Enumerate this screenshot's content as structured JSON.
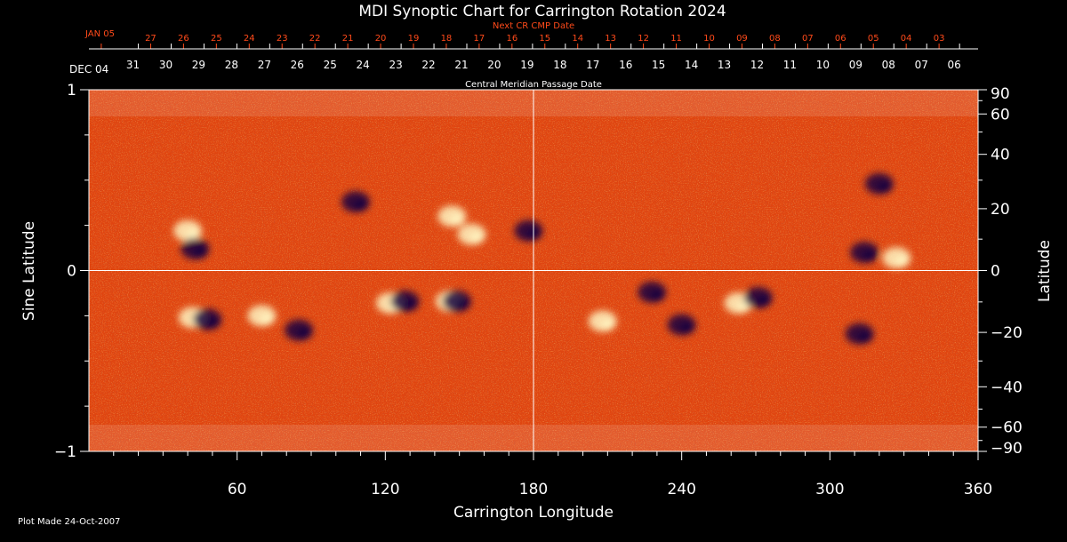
{
  "chart_data": {
    "type": "heatmap",
    "title": "MDI Synoptic Chart for Carrington Rotation 2024",
    "xlabel": "Carrington Longitude",
    "ylabel_left": "Sine Latitude",
    "ylabel_right": "Latitude",
    "xlim": [
      0,
      360
    ],
    "ylim_sine": [
      -1,
      1
    ],
    "x_ticks": [
      60,
      120,
      180,
      240,
      300,
      360
    ],
    "y_ticks_left": [
      {
        "value": 1,
        "label": "1"
      },
      {
        "value": 0,
        "label": "0"
      },
      {
        "value": -1,
        "label": "−1"
      }
    ],
    "y_ticks_right": [
      {
        "value": 90,
        "label": "90"
      },
      {
        "value": 60,
        "label": "60"
      },
      {
        "value": 40,
        "label": "40"
      },
      {
        "value": 20,
        "label": "20"
      },
      {
        "value": 0,
        "label": "0"
      },
      {
        "value": -20,
        "label": "−20"
      },
      {
        "value": -40,
        "label": "−40"
      },
      {
        "value": -60,
        "label": "−60"
      },
      {
        "value": -90,
        "label": "−90"
      }
    ],
    "cmp_axis_label": "Central Meridian Passage Date",
    "cmp_dates": [
      {
        "label": "DEC 04",
        "lon": 0
      },
      {
        "label": "31",
        "lon": 20
      },
      {
        "label": "30",
        "lon": 33.3
      },
      {
        "label": "29",
        "lon": 46.6
      },
      {
        "label": "28",
        "lon": 59.9
      },
      {
        "label": "27",
        "lon": 73.2
      },
      {
        "label": "26",
        "lon": 86.5
      },
      {
        "label": "25",
        "lon": 99.8
      },
      {
        "label": "24",
        "lon": 113.1
      },
      {
        "label": "23",
        "lon": 126.4
      },
      {
        "label": "22",
        "lon": 139.7
      },
      {
        "label": "21",
        "lon": 153
      },
      {
        "label": "20",
        "lon": 166.3
      },
      {
        "label": "19",
        "lon": 179.6
      },
      {
        "label": "18",
        "lon": 192.9
      },
      {
        "label": "17",
        "lon": 206.2
      },
      {
        "label": "16",
        "lon": 219.5
      },
      {
        "label": "15",
        "lon": 232.8
      },
      {
        "label": "14",
        "lon": 246.1
      },
      {
        "label": "13",
        "lon": 259.4
      },
      {
        "label": "12",
        "lon": 272.7
      },
      {
        "label": "11",
        "lon": 286
      },
      {
        "label": "10",
        "lon": 299.3
      },
      {
        "label": "09",
        "lon": 312.6
      },
      {
        "label": "08",
        "lon": 325.9
      },
      {
        "label": "07",
        "lon": 339.2
      },
      {
        "label": "06",
        "lon": 352.5
      }
    ],
    "next_cmp_axis_label": "Next CR CMP Date",
    "next_cmp_dates": [
      {
        "label": "JAN 05",
        "lon": 5
      },
      {
        "label": "27",
        "lon": 25
      },
      {
        "label": "26",
        "lon": 38.3
      },
      {
        "label": "25",
        "lon": 51.6
      },
      {
        "label": "24",
        "lon": 64.9
      },
      {
        "label": "23",
        "lon": 78.2
      },
      {
        "label": "22",
        "lon": 91.5
      },
      {
        "label": "21",
        "lon": 104.8
      },
      {
        "label": "20",
        "lon": 118.1
      },
      {
        "label": "19",
        "lon": 131.4
      },
      {
        "label": "18",
        "lon": 144.7
      },
      {
        "label": "17",
        "lon": 158
      },
      {
        "label": "16",
        "lon": 171.3
      },
      {
        "label": "15",
        "lon": 184.6
      },
      {
        "label": "14",
        "lon": 197.9
      },
      {
        "label": "13",
        "lon": 211.2
      },
      {
        "label": "12",
        "lon": 224.5
      },
      {
        "label": "11",
        "lon": 237.8
      },
      {
        "label": "10",
        "lon": 251.1
      },
      {
        "label": "09",
        "lon": 264.4
      },
      {
        "label": "08",
        "lon": 277.7
      },
      {
        "label": "07",
        "lon": 291
      },
      {
        "label": "06",
        "lon": 304.3
      },
      {
        "label": "05",
        "lon": 317.6
      },
      {
        "label": "04",
        "lon": 330.9
      },
      {
        "label": "03",
        "lon": 344.2
      }
    ],
    "features": [
      {
        "polarity": "positive",
        "lon": 40,
        "sinlat": 0.22
      },
      {
        "polarity": "negative",
        "lon": 43,
        "sinlat": 0.12
      },
      {
        "polarity": "positive",
        "lon": 42,
        "sinlat": -0.26
      },
      {
        "polarity": "negative",
        "lon": 48,
        "sinlat": -0.27
      },
      {
        "polarity": "positive",
        "lon": 70,
        "sinlat": -0.25
      },
      {
        "polarity": "negative",
        "lon": 85,
        "sinlat": -0.33
      },
      {
        "polarity": "negative",
        "lon": 108,
        "sinlat": 0.38
      },
      {
        "polarity": "positive",
        "lon": 147,
        "sinlat": 0.3
      },
      {
        "polarity": "positive",
        "lon": 155,
        "sinlat": 0.2
      },
      {
        "polarity": "negative",
        "lon": 178,
        "sinlat": 0.22
      },
      {
        "polarity": "positive",
        "lon": 122,
        "sinlat": -0.18
      },
      {
        "polarity": "negative",
        "lon": 128,
        "sinlat": -0.17
      },
      {
        "polarity": "positive",
        "lon": 146,
        "sinlat": -0.17
      },
      {
        "polarity": "negative",
        "lon": 149,
        "sinlat": -0.17
      },
      {
        "polarity": "negative",
        "lon": 228,
        "sinlat": -0.12
      },
      {
        "polarity": "positive",
        "lon": 208,
        "sinlat": -0.28
      },
      {
        "polarity": "negative",
        "lon": 240,
        "sinlat": -0.3
      },
      {
        "polarity": "positive",
        "lon": 263,
        "sinlat": -0.18
      },
      {
        "polarity": "negative",
        "lon": 271,
        "sinlat": -0.15
      },
      {
        "polarity": "negative",
        "lon": 314,
        "sinlat": 0.1
      },
      {
        "polarity": "positive",
        "lon": 327,
        "sinlat": 0.07
      },
      {
        "polarity": "negative",
        "lon": 320,
        "sinlat": 0.48
      },
      {
        "polarity": "negative",
        "lon": 312,
        "sinlat": -0.35
      }
    ],
    "grid": false,
    "crosshair": {
      "lon": 180,
      "sinlat": 0
    }
  },
  "footer": {
    "plot_made": "Plot Made 24-Oct-2007"
  },
  "colors": {
    "background": "#000000",
    "field_base": "#e04510",
    "positive_flux": "#fff3c0",
    "negative_flux": "#1a0640",
    "next_cmp_red": "#ff4a1a",
    "axis": "#ffffff"
  }
}
